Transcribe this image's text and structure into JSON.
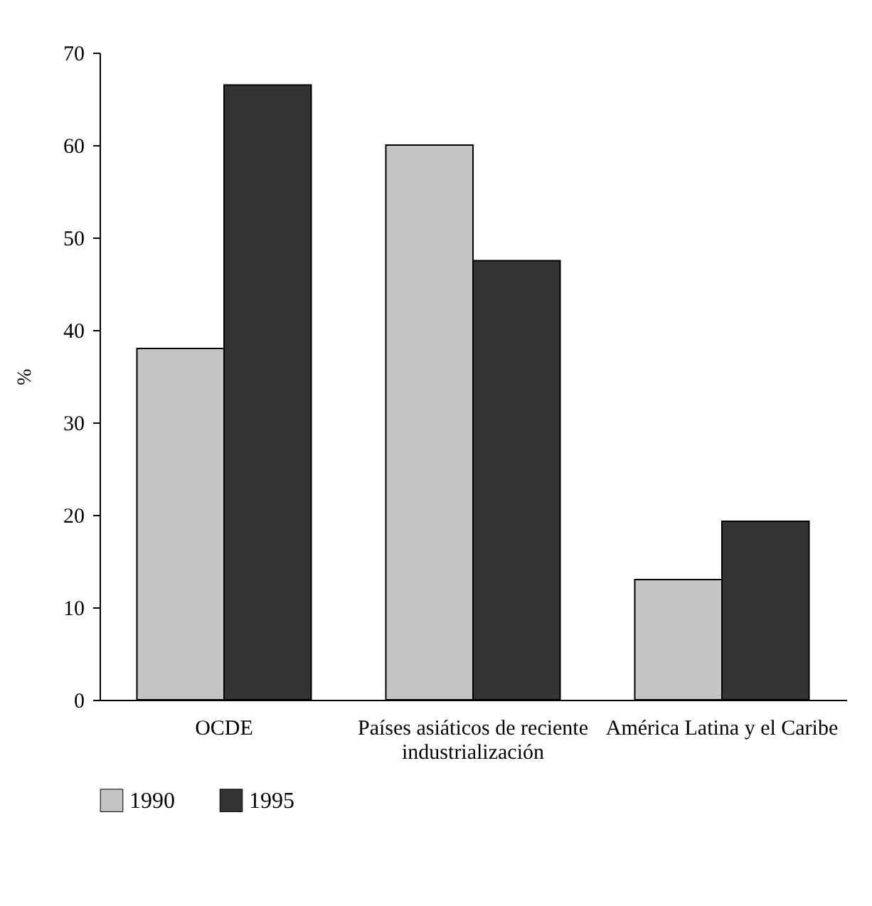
{
  "chart_data": {
    "type": "bar",
    "ylabel": "%",
    "categories": [
      "OCDE",
      "Países asiáticos de reciente industrialización",
      "América Latina y el Caribe"
    ],
    "series": [
      {
        "name": "1990",
        "color": "#c4c4c4",
        "values": [
          38,
          60,
          13
        ]
      },
      {
        "name": "1995",
        "color": "#333333",
        "values": [
          66.5,
          47.5,
          19.3
        ]
      }
    ],
    "ylim": [
      0,
      70
    ],
    "yticks": [
      0,
      10,
      20,
      30,
      40,
      50,
      60,
      70
    ],
    "grid": false,
    "legend": "bottom"
  }
}
